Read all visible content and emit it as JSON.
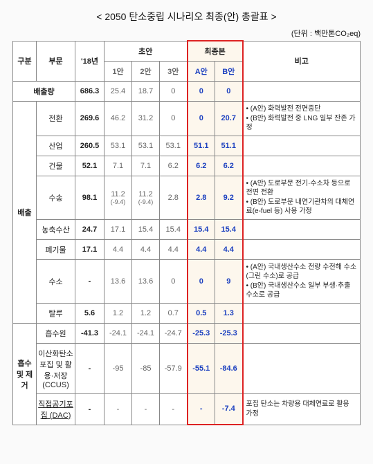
{
  "title": "<  2050 탄소중립 시나리오 최종(안) 총괄표  >",
  "unit": "(단위 : 백만톤CO₂eq)",
  "head": {
    "gubun": "구분",
    "bumun": "부문",
    "y18": "'18년",
    "draft": "초안",
    "final": "최종본",
    "note": "비고",
    "p1": "1안",
    "p2": "2안",
    "p3": "3안",
    "fa": "A안",
    "fb": "B안"
  },
  "total": {
    "label": "배출량",
    "y18": "686.3",
    "p1": "25.4",
    "p2": "18.7",
    "p3": "0",
    "fa": "0",
    "fb": "0"
  },
  "emit": {
    "group": "배출",
    "rows": [
      {
        "label": "전환",
        "y18": "269.6",
        "p1": "46.2",
        "p2": "31.2",
        "p3": "0",
        "fa": "0",
        "fb": "20.7",
        "note": "• (A안) 화력발전 전면중단\n• (B안) 화력발전 중 LNG 일부 잔존 가정"
      },
      {
        "label": "산업",
        "y18": "260.5",
        "p1": "53.1",
        "p2": "53.1",
        "p3": "53.1",
        "fa": "51.1",
        "fb": "51.1",
        "note": ""
      },
      {
        "label": "건물",
        "y18": "52.1",
        "p1": "7.1",
        "p2": "7.1",
        "p3": "6.2",
        "fa": "6.2",
        "fb": "6.2",
        "note": ""
      },
      {
        "label": "수송",
        "y18": "98.1",
        "p1": "11.2",
        "p1sub": "(-9.4)",
        "p2": "11.2",
        "p2sub": "(-9.4)",
        "p3": "2.8",
        "fa": "2.8",
        "fb": "9.2",
        "note": "• (A안) 도로부문 전기·수소차 등으로 전면 전환\n• (B안) 도로부문 내연기관차의 대체연료(e-fuel 등) 사용 가정"
      },
      {
        "label": "농축수산",
        "y18": "24.7",
        "p1": "17.1",
        "p2": "15.4",
        "p3": "15.4",
        "fa": "15.4",
        "fb": "15.4",
        "note": ""
      },
      {
        "label": "폐기물",
        "y18": "17.1",
        "p1": "4.4",
        "p2": "4.4",
        "p3": "4.4",
        "fa": "4.4",
        "fb": "4.4",
        "note": ""
      },
      {
        "label": "수소",
        "y18": "-",
        "p1": "13.6",
        "p2": "13.6",
        "p3": "0",
        "fa": "0",
        "fb": "9",
        "note": "• (A안) 국내생산수소 전량 수전해 수소(그린 수소)로 공급\n• (B안) 국내생산수소 일부 부생·추출 수소로 공급"
      },
      {
        "label": "탈루",
        "y18": "5.6",
        "p1": "1.2",
        "p2": "1.2",
        "p3": "0.7",
        "fa": "0.5",
        "fb": "1.3",
        "note": ""
      }
    ]
  },
  "sink": {
    "group": "흡수 및 제거",
    "rows": [
      {
        "label": "흡수원",
        "y18": "-41.3",
        "p1": "-24.1",
        "p2": "-24.1",
        "p3": "-24.7",
        "fa": "-25.3",
        "fb": "-25.3",
        "note": ""
      },
      {
        "label": "이산화탄소 포집 및 활용·저장 (CCUS)",
        "y18": "-",
        "p1": "-95",
        "p2": "-85",
        "p3": "-57.9",
        "fa": "-55.1",
        "fb": "-84.6",
        "note": ""
      },
      {
        "label": "직접공기포집 (DAC)",
        "underline": true,
        "y18": "-",
        "p1": "-",
        "p2": "-",
        "p3": "-",
        "fa": "-",
        "fb": "-7.4",
        "note": "포집 탄소는 차량용 대체연료로 활용 가정"
      }
    ]
  },
  "colors": {
    "red": "#d22",
    "blue": "#1b3fbf",
    "beige": "#fdf7ed",
    "border": "#888",
    "light": "#666"
  }
}
